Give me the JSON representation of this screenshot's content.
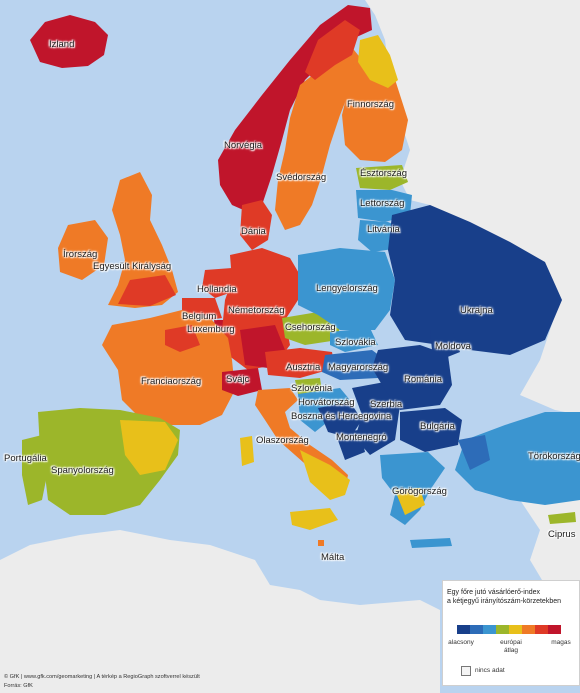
{
  "colors": {
    "sea": "#b9d3ef",
    "outside": "#ececec",
    "very_low": "#183f8a",
    "low": "#2d6cb8",
    "below": "#3b95d0",
    "near_low": "#9cb62a",
    "near_high": "#e8c01a",
    "above": "#ef7a26",
    "high": "#df3a26",
    "very_high": "#c0152b"
  },
  "countries": [
    {
      "key": "izland",
      "label": "Izland"
    },
    {
      "key": "norvegia",
      "label": "Norvégia"
    },
    {
      "key": "svedorszag",
      "label": "Svédország"
    },
    {
      "key": "finnorszag",
      "label": "Finnország"
    },
    {
      "key": "esztorszag",
      "label": "Észtország"
    },
    {
      "key": "lettorszag",
      "label": "Lettország"
    },
    {
      "key": "litvania",
      "label": "Litvánia"
    },
    {
      "key": "dania",
      "label": "Dánia"
    },
    {
      "key": "irorszag",
      "label": "Írország"
    },
    {
      "key": "egyesult_kiralysag",
      "label": "Egyesült Királyság"
    },
    {
      "key": "hollandia",
      "label": "Hollandia"
    },
    {
      "key": "nemetorszag",
      "label": "Németország"
    },
    {
      "key": "belgium",
      "label": "Belgium"
    },
    {
      "key": "luxemburg",
      "label": "Luxemburg"
    },
    {
      "key": "lengyelorszag",
      "label": "Lengyelország"
    },
    {
      "key": "csehorszag",
      "label": "Csehország"
    },
    {
      "key": "szlovakia",
      "label": "Szlovákia"
    },
    {
      "key": "ukrajna",
      "label": "Ukrajna"
    },
    {
      "key": "moldova",
      "label": "Moldova"
    },
    {
      "key": "romania",
      "label": "Románia"
    },
    {
      "key": "magyarorszag",
      "label": "Magyarország"
    },
    {
      "key": "ausztria",
      "label": "Ausztria"
    },
    {
      "key": "svajc",
      "label": "Svájc"
    },
    {
      "key": "franciaorszag",
      "label": "Franciaország"
    },
    {
      "key": "szlovenia",
      "label": "Szlovénia"
    },
    {
      "key": "horvatorszag",
      "label": "Horvátország"
    },
    {
      "key": "szerbia",
      "label": "Szerbia"
    },
    {
      "key": "bosznia",
      "label": "Boszna és Hercegovina"
    },
    {
      "key": "bulgaria",
      "label": "Bulgária"
    },
    {
      "key": "olaszorszag",
      "label": "Olaszország"
    },
    {
      "key": "montenegro",
      "label": "Montenegró"
    },
    {
      "key": "torokorszag",
      "label": "Törökország"
    },
    {
      "key": "portugalia",
      "label": "Portugália"
    },
    {
      "key": "spanyolorszag",
      "label": "Spanyolország"
    },
    {
      "key": "gorogorszag",
      "label": "Görögország"
    },
    {
      "key": "malta",
      "label": "Málta"
    },
    {
      "key": "ciprus",
      "label": "Ciprus"
    }
  ],
  "legend": {
    "title_line1": "Egy főre jutó vásárlóerő-index",
    "title_line2": "a kétjegyű irányítószám-körzetekben",
    "low": "alacsony",
    "avg_line1": "európai",
    "avg_line2": "átlag",
    "high": "magas",
    "no_data": "nincs adat",
    "scale_colors": [
      "#183f8a",
      "#2d6cb8",
      "#3b95d0",
      "#9cb62a",
      "#e8c01a",
      "#ef7a26",
      "#df3a26",
      "#c0152b"
    ]
  },
  "credit": "© GfK | www.gfk.com/geomarketing | A térkép a RegioGraph szoftverrel készült",
  "source": "Forrás: GfK"
}
